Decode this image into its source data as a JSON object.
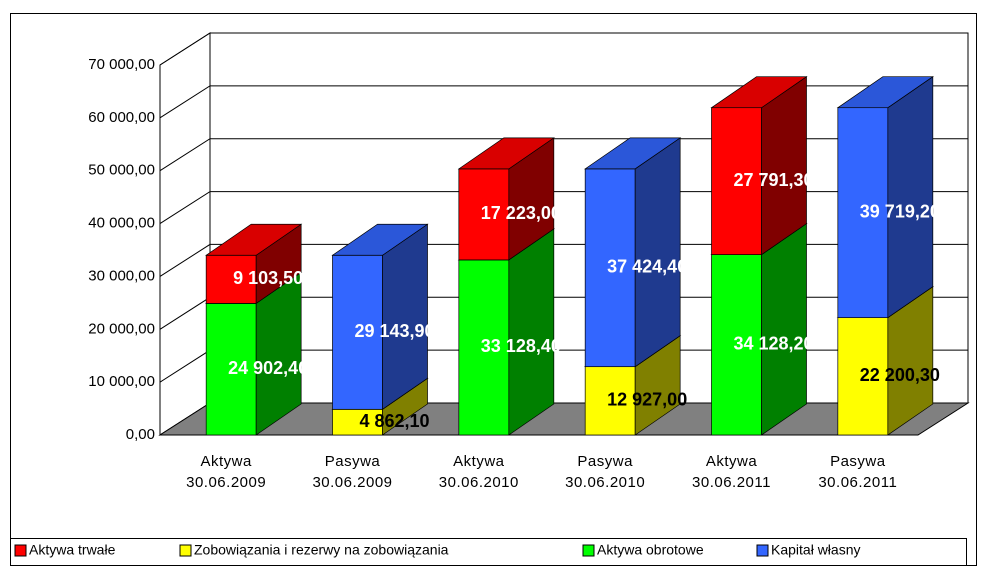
{
  "chart_data": {
    "type": "bar3d_stacked",
    "categories": [
      "Aktywa\n30.06.2009",
      "Pasywa\n30.06.2009",
      "Aktywa\n30.06.2010",
      "Pasywa\n30.06.2010",
      "Aktywa\n30.06.2011",
      "Pasywa\n30.06.2011"
    ],
    "series": [
      {
        "name": "Aktywa obrotowe",
        "color": "#00ff00",
        "side_color": "#008000",
        "label_color": "#ffffff",
        "values": [
          24902.4,
          null,
          33128.4,
          null,
          34128.2,
          null
        ],
        "value_labels": [
          "24 902,40",
          null,
          "33 128,40",
          null,
          "34 128,20",
          null
        ]
      },
      {
        "name": "Zobowiązania i rezerwy na zobowiązania",
        "color": "#ffff00",
        "side_color": "#808000",
        "label_color": "#000000",
        "values": [
          null,
          4862.1,
          null,
          12927.0,
          null,
          22200.3
        ],
        "value_labels": [
          null,
          "4 862,10",
          null,
          "12 927,00",
          null,
          "22 200,30"
        ]
      },
      {
        "name": "Aktywa trwałe",
        "color": "#ff0000",
        "side_color": "#800000",
        "label_color": "#ffffff",
        "values": [
          9103.5,
          null,
          17223.0,
          null,
          27791.3,
          null
        ],
        "value_labels": [
          "9 103,50",
          null,
          "17 223,00",
          null,
          "27 791,30",
          null
        ]
      },
      {
        "name": "Kapitał własny",
        "color": "#3366ff",
        "side_color": "#1f3a8f",
        "label_color": "#ffffff",
        "values": [
          null,
          29143.9,
          null,
          37424.4,
          null,
          39719.2
        ],
        "value_labels": [
          null,
          "29 143,90",
          null,
          "37 424,40",
          null,
          "39 719,20"
        ]
      }
    ],
    "ylim": [
      0,
      70000
    ],
    "yticks": [
      {
        "value": 0,
        "label": "0,00"
      },
      {
        "value": 10000,
        "label": "10 000,00"
      },
      {
        "value": 20000,
        "label": "20 000,00"
      },
      {
        "value": 30000,
        "label": "30 000,00"
      },
      {
        "value": 40000,
        "label": "40 000,00"
      },
      {
        "value": 50000,
        "label": "50 000,00"
      },
      {
        "value": 60000,
        "label": "60 000,00"
      },
      {
        "value": 70000,
        "label": "70 000,00"
      }
    ],
    "grid": true
  }
}
